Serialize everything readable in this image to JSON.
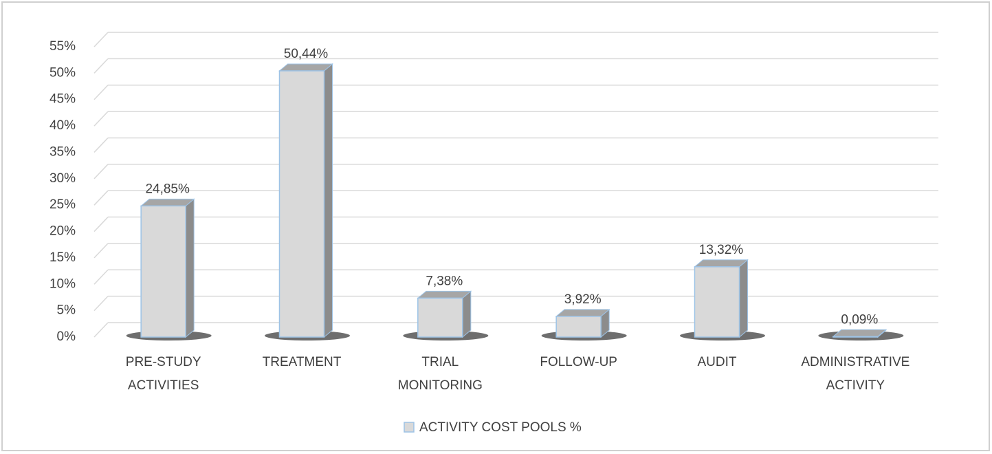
{
  "chart_data": {
    "type": "bar",
    "categories": [
      "PRE-STUDY ACTIVITIES",
      "TREATMENT",
      "TRIAL MONITORING",
      "FOLLOW-UP",
      "AUDIT",
      "ADMINISTRATIVE ACTIVITY"
    ],
    "series": [
      {
        "name": "ACTIVITY COST POOLS %",
        "color": "#d9d9d9",
        "values": [
          24.85,
          50.44,
          7.38,
          3.92,
          13.32,
          0.09
        ],
        "value_labels": [
          "24,85%",
          "50,44%",
          "7,38%",
          "3,92%",
          "13,32%",
          "0,09%"
        ]
      }
    ],
    "ylim": [
      0,
      55
    ],
    "yticks": [
      {
        "value": 0,
        "label": "0%"
      },
      {
        "value": 5,
        "label": "5%"
      },
      {
        "value": 10,
        "label": "10%"
      },
      {
        "value": 15,
        "label": "15%"
      },
      {
        "value": 20,
        "label": "20%"
      },
      {
        "value": 25,
        "label": "25%"
      },
      {
        "value": 30,
        "label": "30%"
      },
      {
        "value": 35,
        "label": "35%"
      },
      {
        "value": 40,
        "label": "40%"
      },
      {
        "value": 45,
        "label": "45%"
      },
      {
        "value": 50,
        "label": "50%"
      },
      {
        "value": 55,
        "label": "55%"
      }
    ],
    "grid": true,
    "legend": "bottom"
  }
}
